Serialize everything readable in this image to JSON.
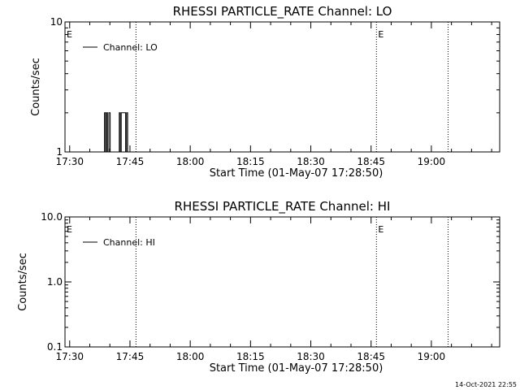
{
  "chart_data": [
    {
      "type": "line",
      "title": "RHESSI PARTICLE_RATE Channel: LO",
      "xlabel": "Start Time (01-May-07 17:28:50)",
      "ylabel": "Counts/sec",
      "y_scale": "log",
      "ylim": [
        1,
        10
      ],
      "y_ticks": [
        "1",
        "10"
      ],
      "xlim": [
        "17:28:50",
        "19:17:00"
      ],
      "x_ticks": [
        "17:30",
        "17:45",
        "18:00",
        "18:15",
        "18:30",
        "18:45",
        "19:00"
      ],
      "legend": "Channel: LO",
      "legend_position": "top-left",
      "vertical_markers": [
        "17:46:30",
        "18:46:20",
        "19:04:10"
      ],
      "marker_labels": [
        {
          "label": "E",
          "time": "17:28:50"
        },
        {
          "label": "E",
          "time": "18:46:20"
        }
      ],
      "series": [
        {
          "x": [
            "17:38:40",
            "17:38:40",
            "17:38:55",
            "17:38:55",
            "17:39:10",
            "17:39:10",
            "17:39:25",
            "17:39:25",
            "17:39:45",
            "17:39:45",
            "17:40:05",
            "17:40:05",
            "17:40:20",
            "17:40:20",
            "17:42:20",
            "17:42:20",
            "17:42:35",
            "17:42:35",
            "17:42:50",
            "17:42:50",
            "17:43:55",
            "17:43:55",
            "17:44:10",
            "17:44:10",
            "17:44:25",
            "17:44:25"
          ],
          "y": [
            1,
            2,
            2,
            1,
            1,
            2,
            2,
            1,
            1,
            2,
            2,
            1,
            1,
            1,
            1,
            2,
            2,
            1,
            1,
            2,
            2,
            1,
            1,
            2,
            2,
            1
          ]
        }
      ]
    },
    {
      "type": "line",
      "title": "RHESSI PARTICLE_RATE Channel: HI",
      "xlabel": "Start Time (01-May-07 17:28:50)",
      "ylabel": "Counts/sec",
      "y_scale": "log",
      "ylim": [
        0.1,
        10
      ],
      "y_ticks": [
        "0.1",
        "1.0",
        "10.0"
      ],
      "xlim": [
        "17:28:50",
        "19:17:00"
      ],
      "x_ticks": [
        "17:30",
        "17:45",
        "18:00",
        "18:15",
        "18:30",
        "18:45",
        "19:00"
      ],
      "legend": "Channel: HI",
      "legend_position": "top-left",
      "vertical_markers": [
        "17:46:30",
        "18:46:20",
        "19:04:10"
      ],
      "marker_labels": [
        {
          "label": "E",
          "time": "17:28:50"
        },
        {
          "label": "E",
          "time": "18:46:20"
        }
      ],
      "series": [
        {
          "x": [],
          "y": []
        }
      ]
    }
  ],
  "footer": {
    "stamp": "14-Oct-2021 22:55"
  }
}
